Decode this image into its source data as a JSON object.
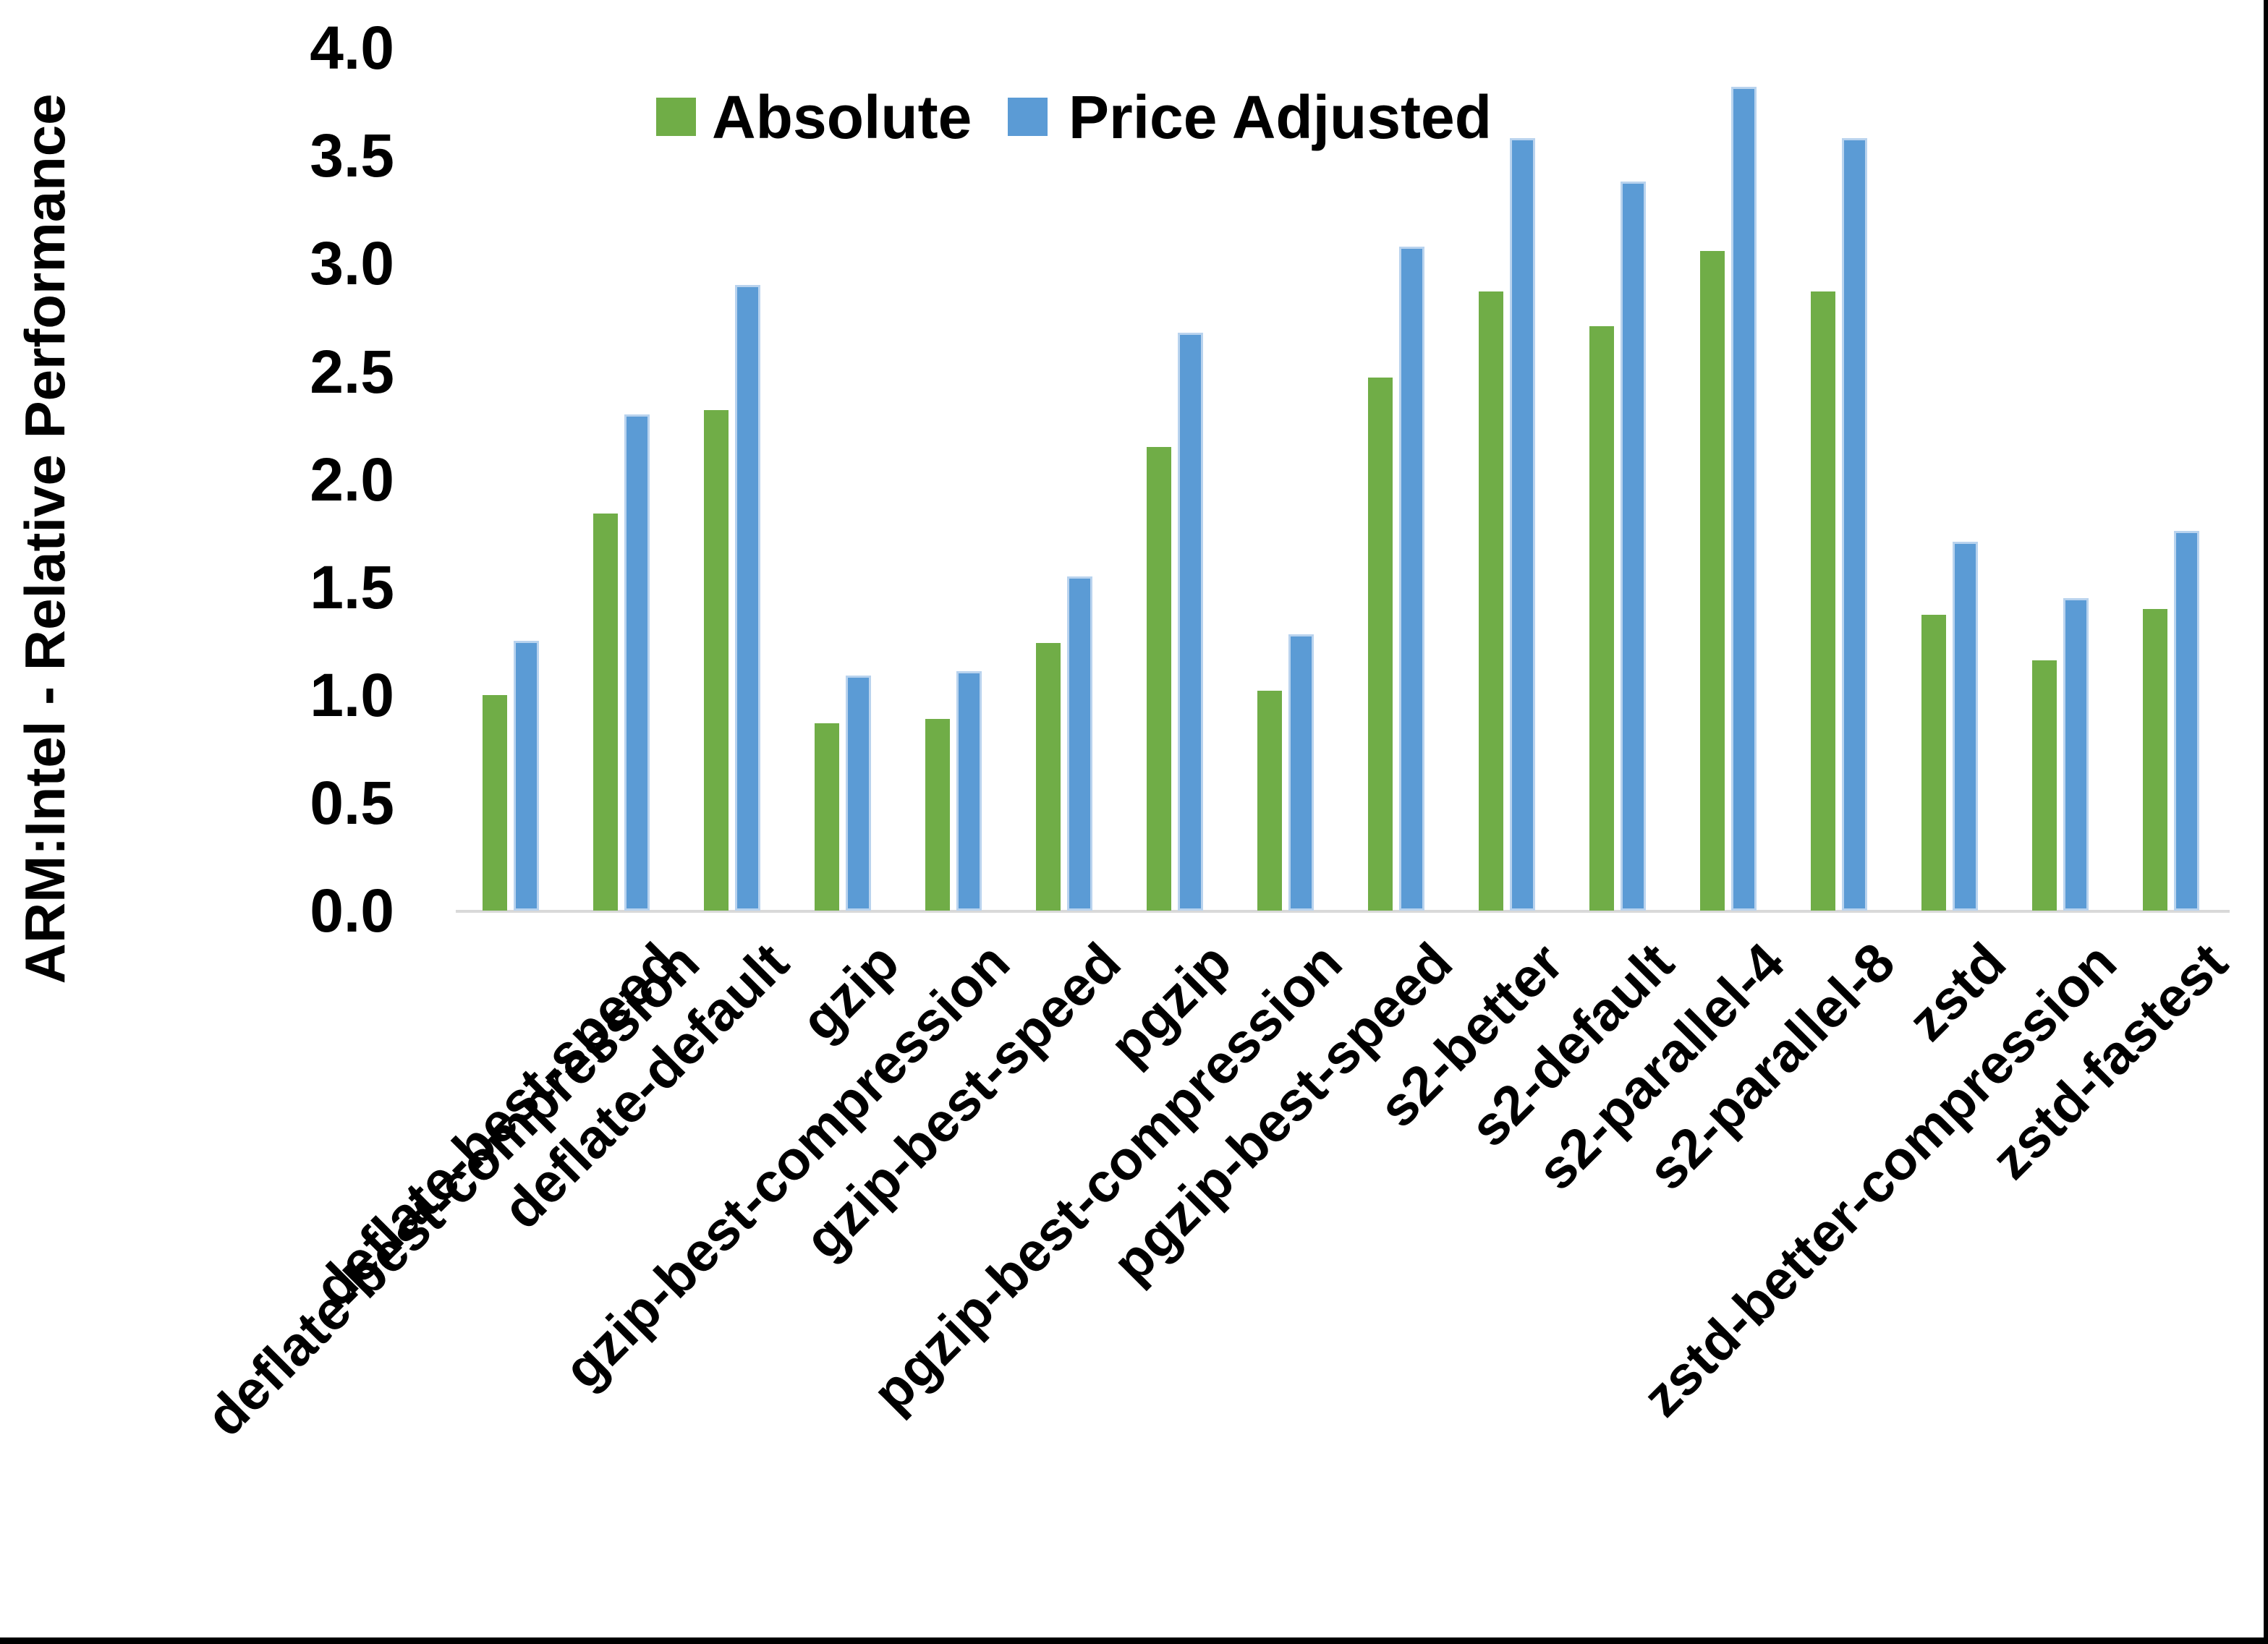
{
  "chart_data": {
    "type": "bar",
    "title": "",
    "ylabel": "ARM:Intel - Relative Performance",
    "xlabel": "",
    "ylim": [
      0.0,
      4.0
    ],
    "ytick_step": 0.5,
    "ytick_labels": [
      "0.0",
      "0.5",
      "1.0",
      "1.5",
      "2.0",
      "2.5",
      "3.0",
      "3.5",
      "4.0"
    ],
    "grid": false,
    "legend_position": "top-center",
    "categories": [
      "deflate-best-compression",
      "deflate-best-speed",
      "deflate-default",
      "gzip",
      "gzip-best-compression",
      "gzip-best-speed",
      "pgzip",
      "pgzip-best-compression",
      "pgzip-best-speed",
      "s2-better",
      "s2-default",
      "s2-parallel-4",
      "s2-parallel-8",
      "zstd",
      "zstd-better-compression",
      "zstd-fastest"
    ],
    "series": [
      {
        "name": "Absolute",
        "color": "#70AD47",
        "values": [
          1.0,
          1.84,
          2.32,
          0.87,
          0.89,
          1.24,
          2.15,
          1.02,
          2.47,
          2.87,
          2.71,
          3.06,
          2.87,
          1.37,
          1.16,
          1.4
        ]
      },
      {
        "name": "Price Adjusted",
        "color": "#5B9BD5",
        "values": [
          1.25,
          2.3,
          2.9,
          1.09,
          1.11,
          1.55,
          2.68,
          1.28,
          3.08,
          3.58,
          3.38,
          3.82,
          3.58,
          1.71,
          1.45,
          1.76
        ]
      }
    ]
  },
  "colors": {
    "axis_line": "#d9d9d9",
    "text": "#000000",
    "background": "#ffffff",
    "frame_border": "#000000"
  }
}
